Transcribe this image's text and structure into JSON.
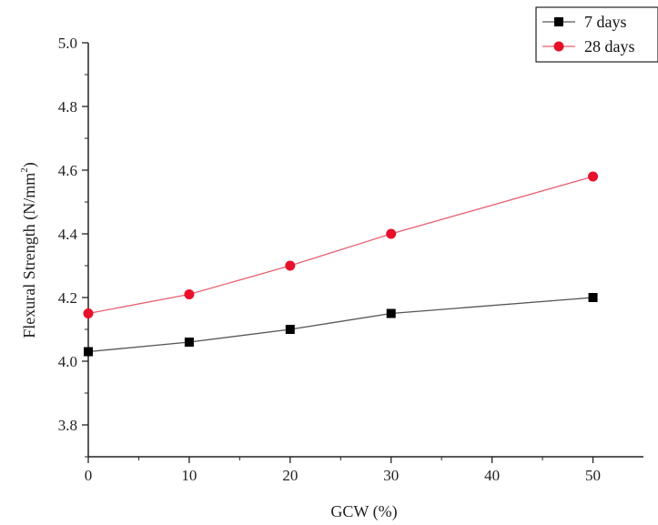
{
  "chart_data": {
    "type": "line",
    "xlabel": "GCW (%)",
    "ylabel": {
      "main": "Flexural Strength (N/mm",
      "superscript": "2",
      "suffix": ")"
    },
    "x": [
      0,
      10,
      20,
      30,
      50
    ],
    "xlim": [
      0,
      55
    ],
    "ylim": [
      3.7,
      5.0
    ],
    "x_ticks": [
      0,
      10,
      20,
      30,
      40,
      50
    ],
    "y_ticks": [
      3.8,
      4.0,
      4.2,
      4.4,
      4.6,
      4.8,
      5.0
    ],
    "x_tick_labels": [
      "0",
      "10",
      "20",
      "30",
      "40",
      "50"
    ],
    "y_tick_labels": [
      "3.8",
      "4.0",
      "4.2",
      "4.4",
      "4.6",
      "4.8",
      "5.0"
    ],
    "grid": false,
    "legend_position": "top-right",
    "series": [
      {
        "name": "7 days",
        "values": [
          4.03,
          4.06,
          4.1,
          4.15,
          4.2
        ],
        "color": "#000000",
        "line_color": "#555555",
        "marker": "square"
      },
      {
        "name": "28 days",
        "values": [
          4.15,
          4.21,
          4.3,
          4.4,
          4.58
        ],
        "color": "#e8102a",
        "line_color": "#e86070",
        "marker": "circle"
      }
    ]
  }
}
